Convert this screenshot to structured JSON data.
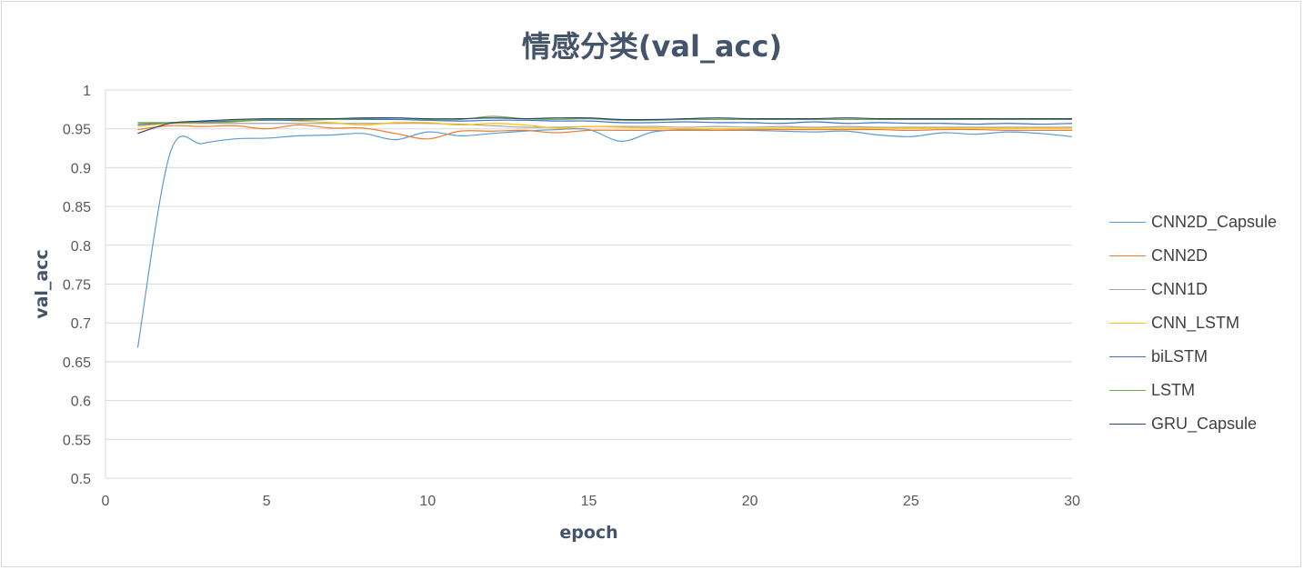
{
  "chart_data": {
    "type": "line",
    "title": "情感分类(val_acc)",
    "xlabel": "epoch",
    "ylabel": "val_acc",
    "xlim": [
      0,
      30
    ],
    "ylim": [
      0.5,
      1
    ],
    "xticks": [
      0,
      5,
      10,
      15,
      20,
      25,
      30
    ],
    "yticks": [
      0.5,
      0.55,
      0.6,
      0.65,
      0.7,
      0.75,
      0.8,
      0.85,
      0.9,
      0.95,
      1
    ],
    "ytick_labels": [
      "0.5",
      "0.55",
      "0.6",
      "0.65",
      "0.7",
      "0.75",
      "0.8",
      "0.85",
      "0.9",
      "0.95",
      "1"
    ],
    "grid": "horizontal",
    "legend_position": "right",
    "x": [
      1,
      2,
      3,
      4,
      5,
      6,
      7,
      8,
      9,
      10,
      11,
      12,
      13,
      14,
      15,
      16,
      17,
      18,
      19,
      20,
      21,
      22,
      23,
      24,
      25,
      26,
      27,
      28,
      29,
      30
    ],
    "series": [
      {
        "name": "CNN2D_Capsule",
        "color": "#5b9bd5",
        "values": [
          0.668,
          0.918,
          0.931,
          0.937,
          0.938,
          0.941,
          0.942,
          0.944,
          0.936,
          0.946,
          0.941,
          0.944,
          0.947,
          0.949,
          0.949,
          0.934,
          0.946,
          0.949,
          0.948,
          0.948,
          0.947,
          0.946,
          0.947,
          0.942,
          0.94,
          0.945,
          0.943,
          0.946,
          0.944,
          0.94
        ]
      },
      {
        "name": "CNN2D",
        "color": "#ed7d31",
        "values": [
          0.949,
          0.954,
          0.953,
          0.954,
          0.95,
          0.955,
          0.951,
          0.951,
          0.944,
          0.937,
          0.947,
          0.947,
          0.948,
          0.945,
          0.948,
          0.948,
          0.948,
          0.948,
          0.948,
          0.949,
          0.949,
          0.949,
          0.949,
          0.949,
          0.948,
          0.949,
          0.949,
          0.948,
          0.948,
          0.948
        ]
      },
      {
        "name": "CNN1D",
        "color": "#a5a5a5",
        "values": [
          0.957,
          0.957,
          0.957,
          0.957,
          0.957,
          0.957,
          0.957,
          0.957,
          0.957,
          0.957,
          0.956,
          0.954,
          0.952,
          0.952,
          0.953,
          0.953,
          0.953,
          0.952,
          0.953,
          0.952,
          0.953,
          0.952,
          0.953,
          0.952,
          0.952,
          0.952,
          0.952,
          0.952,
          0.952,
          0.952
        ]
      },
      {
        "name": "CNN_LSTM",
        "color": "#ffc000",
        "values": [
          0.953,
          0.957,
          0.958,
          0.961,
          0.962,
          0.96,
          0.958,
          0.955,
          0.958,
          0.958,
          0.955,
          0.957,
          0.955,
          0.951,
          0.953,
          0.952,
          0.951,
          0.95,
          0.95,
          0.95,
          0.951,
          0.951,
          0.951,
          0.951,
          0.951,
          0.951,
          0.951,
          0.951,
          0.951,
          0.951
        ]
      },
      {
        "name": "biLSTM",
        "color": "#4472c4",
        "values": [
          0.955,
          0.958,
          0.959,
          0.96,
          0.961,
          0.961,
          0.962,
          0.962,
          0.962,
          0.961,
          0.96,
          0.961,
          0.961,
          0.96,
          0.96,
          0.958,
          0.958,
          0.959,
          0.958,
          0.958,
          0.957,
          0.959,
          0.957,
          0.958,
          0.957,
          0.957,
          0.956,
          0.957,
          0.956,
          0.957
        ]
      },
      {
        "name": "LSTM",
        "color": "#70ad47",
        "values": [
          0.958,
          0.958,
          0.958,
          0.959,
          0.962,
          0.962,
          0.962,
          0.963,
          0.964,
          0.962,
          0.962,
          0.966,
          0.963,
          0.962,
          0.963,
          0.961,
          0.961,
          0.962,
          0.962,
          0.962,
          0.962,
          0.962,
          0.962,
          0.962,
          0.962,
          0.962,
          0.962,
          0.962,
          0.962,
          0.962
        ]
      },
      {
        "name": "GRU_Capsule",
        "color": "#264478",
        "values": [
          0.944,
          0.957,
          0.96,
          0.962,
          0.963,
          0.963,
          0.963,
          0.964,
          0.964,
          0.963,
          0.963,
          0.964,
          0.963,
          0.964,
          0.964,
          0.962,
          0.962,
          0.963,
          0.964,
          0.963,
          0.963,
          0.963,
          0.964,
          0.963,
          0.963,
          0.963,
          0.963,
          0.963,
          0.963,
          0.963
        ]
      }
    ]
  }
}
